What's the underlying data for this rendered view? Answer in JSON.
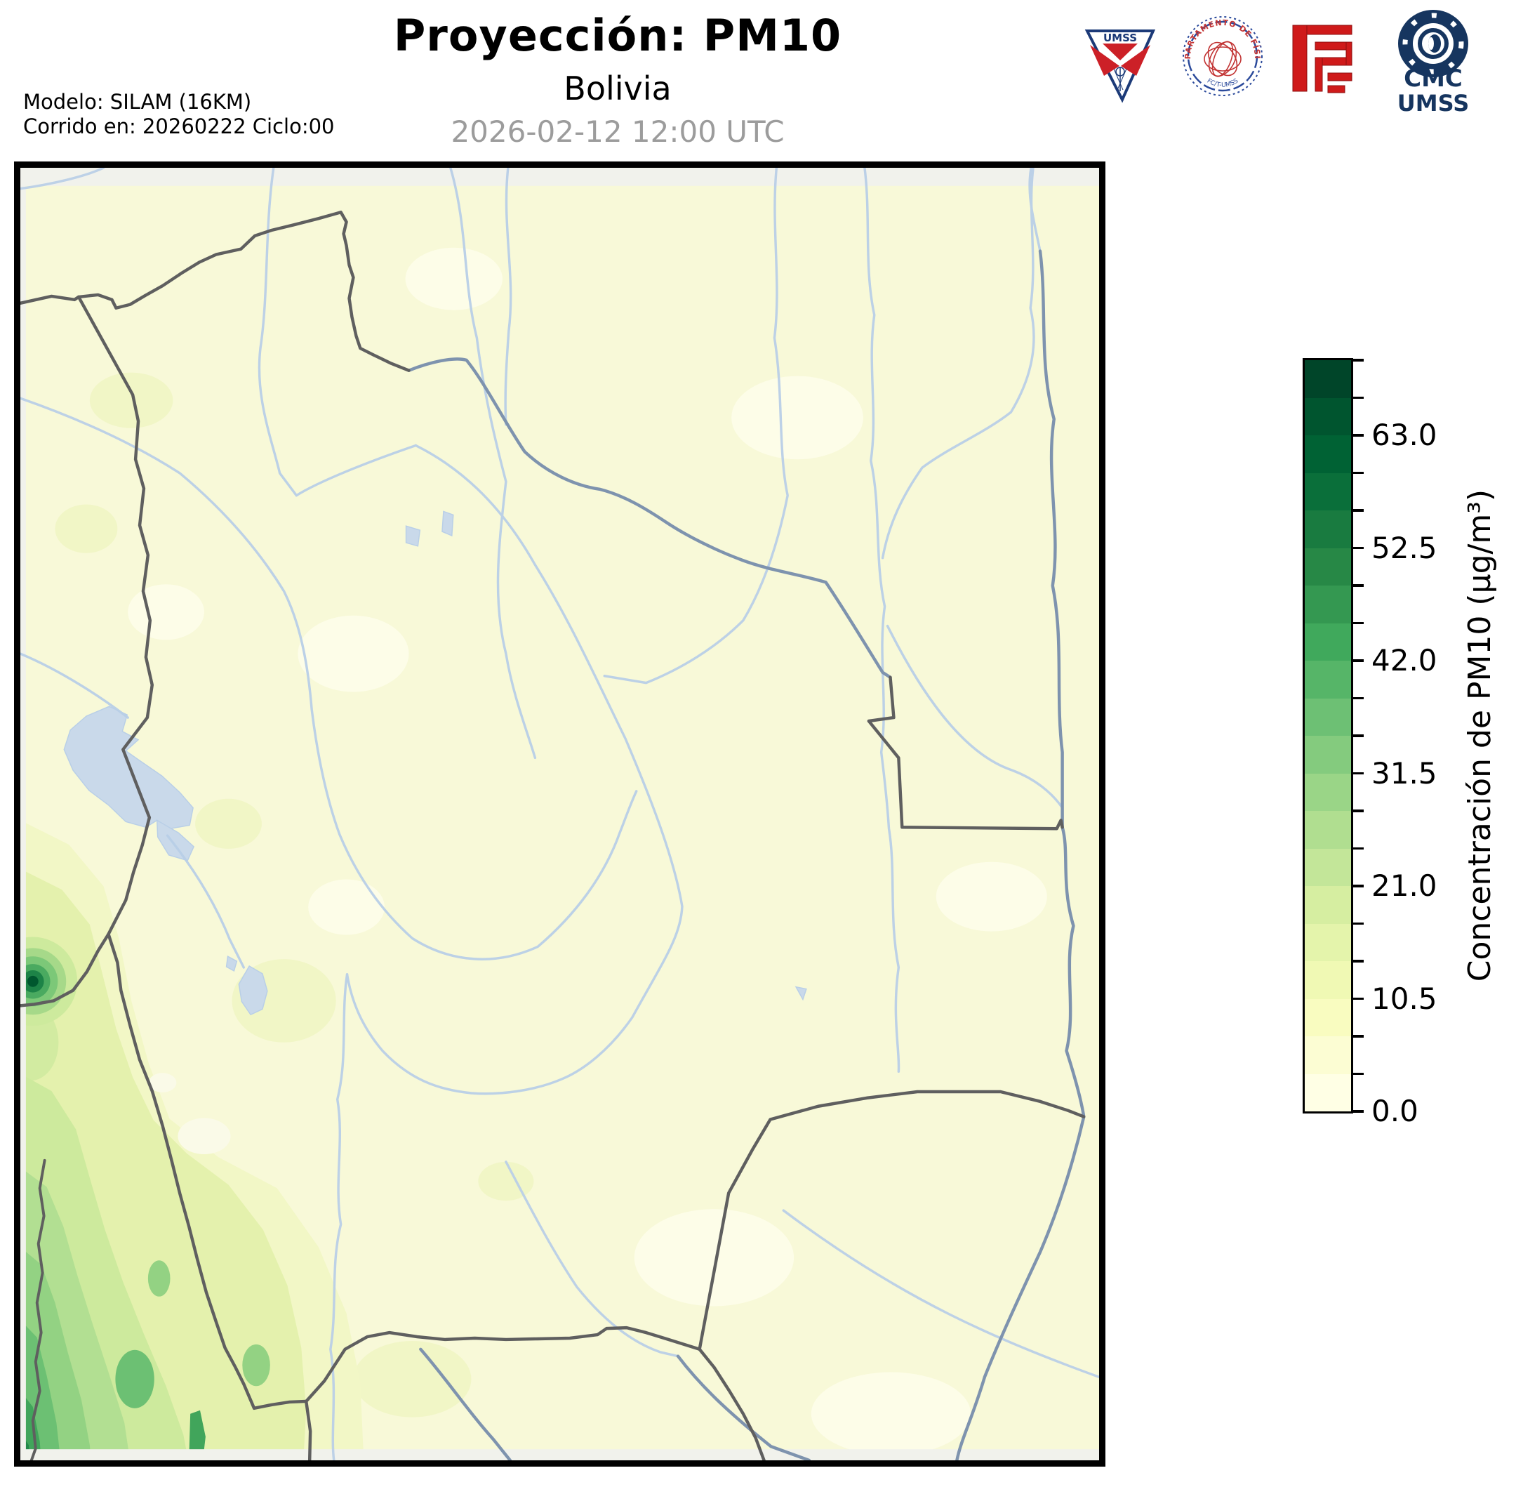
{
  "header": {
    "title": "Proyección: PM10",
    "subtitle": "Bolivia",
    "datetime": "2026-02-12 12:00 UTC",
    "model_line1": "Modelo: SILAM (16KM)",
    "model_line2": "Corrido en: 20260222 Ciclo:00"
  },
  "logos": {
    "umss_pennant": {
      "label": "UMSS"
    },
    "fisica_seal": {
      "arc_text": "DEPARTAMENTO DE FÍSICA",
      "bottom_text": "FC/T-UMSS"
    },
    "fcyt_red": {
      "name": "fcyt-red-logo"
    },
    "cmc": {
      "line1": "CMC",
      "line2": "UMSS"
    }
  },
  "colorbar": {
    "title": "Concentración de PM10 (µg/m³)",
    "unit": "µg/m³",
    "min": 0,
    "max": 70,
    "step": 3.5,
    "major_ticks": [
      "0.0",
      "10.5",
      "21.0",
      "31.5",
      "42.0",
      "52.5",
      "63.0"
    ],
    "major_tick_values": [
      0,
      10.5,
      21.0,
      31.5,
      42.0,
      52.5,
      63.0
    ],
    "segment_colors": [
      "#ffffe5",
      "#fcfdd3",
      "#f9fcc0",
      "#f0f9b4",
      "#e4f4ab",
      "#d6eea1",
      "#c3e699",
      "#b0de90",
      "#9ad587",
      "#84cb7e",
      "#6dc074",
      "#56b568",
      "#40a95c",
      "#349851",
      "#278846",
      "#197b40",
      "#0a6f3a",
      "#006234",
      "#00552f",
      "#004529"
    ]
  },
  "map": {
    "region": "Bolivia",
    "field": "PM10",
    "colors": {
      "frame": "#000000",
      "land_base": "#f8f9d8",
      "outside_domain": "#f1f2ec",
      "river": "#b9cfe7",
      "major_river": "#7e93ae",
      "country_border": "#5f5f5f",
      "lake": "#c9d9ea",
      "date_text": "#9c9c9c",
      "logo_navy": "#1c3a78",
      "logo_red": "#cf1a1a",
      "cmc_navy": "#16355f"
    }
  }
}
